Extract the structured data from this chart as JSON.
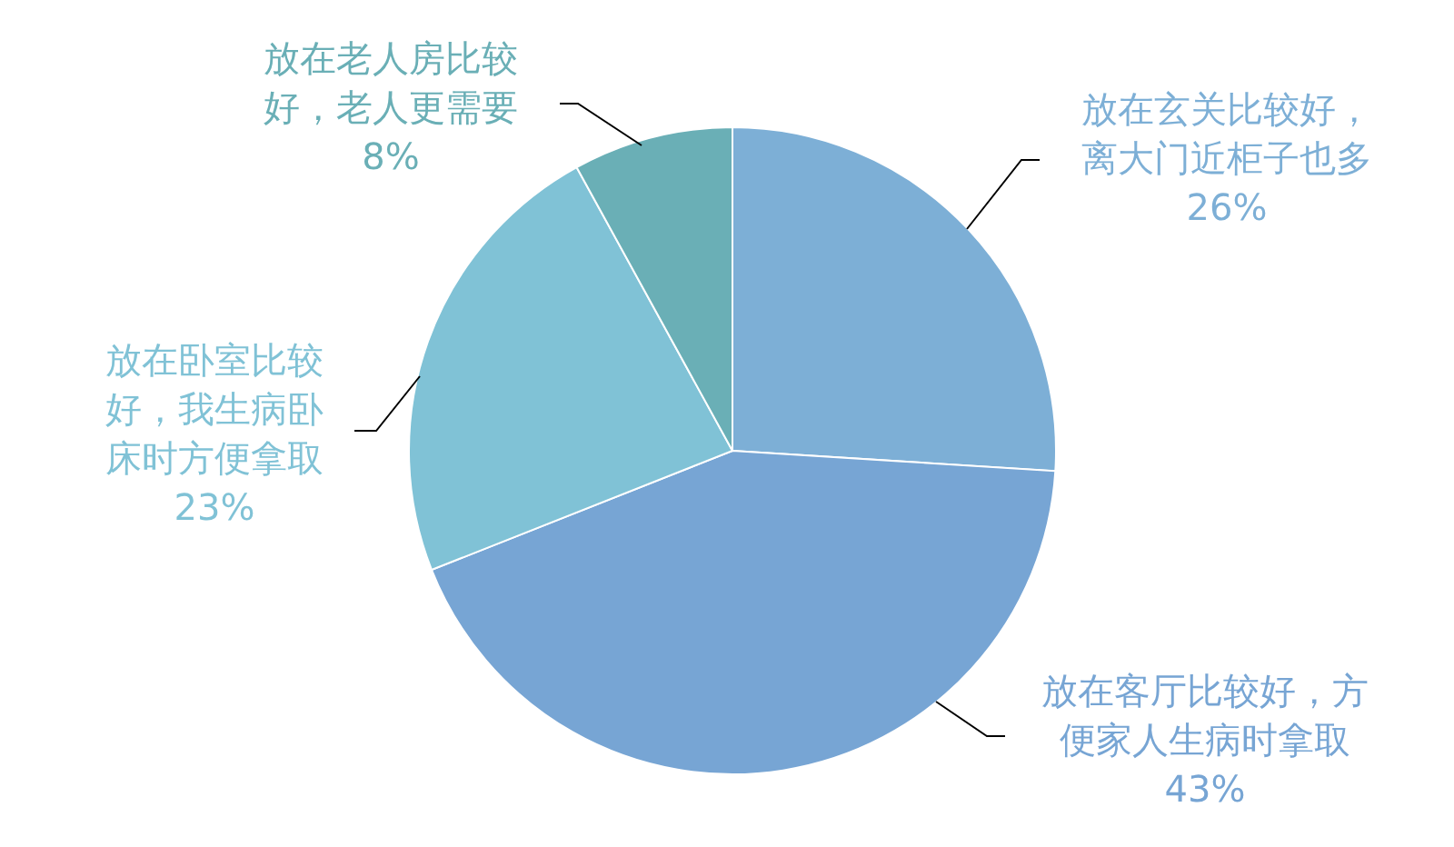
{
  "chart_data": {
    "type": "pie",
    "categories": [
      "放在玄关比较好，离大门近柜子也多",
      "放在客厅比较好，方便家人生病时拿取",
      "放在卧室比较好，我生病卧床时方便拿取",
      "放在老人房比较好，老人更需要"
    ],
    "values": [
      26,
      43,
      23,
      8
    ],
    "value_labels": [
      "26%",
      "43%",
      "23%",
      "8%"
    ],
    "colors": [
      "#7dafd6",
      "#77a5d4",
      "#80c2d6",
      "#6aafb6"
    ],
    "legend": false
  }
}
